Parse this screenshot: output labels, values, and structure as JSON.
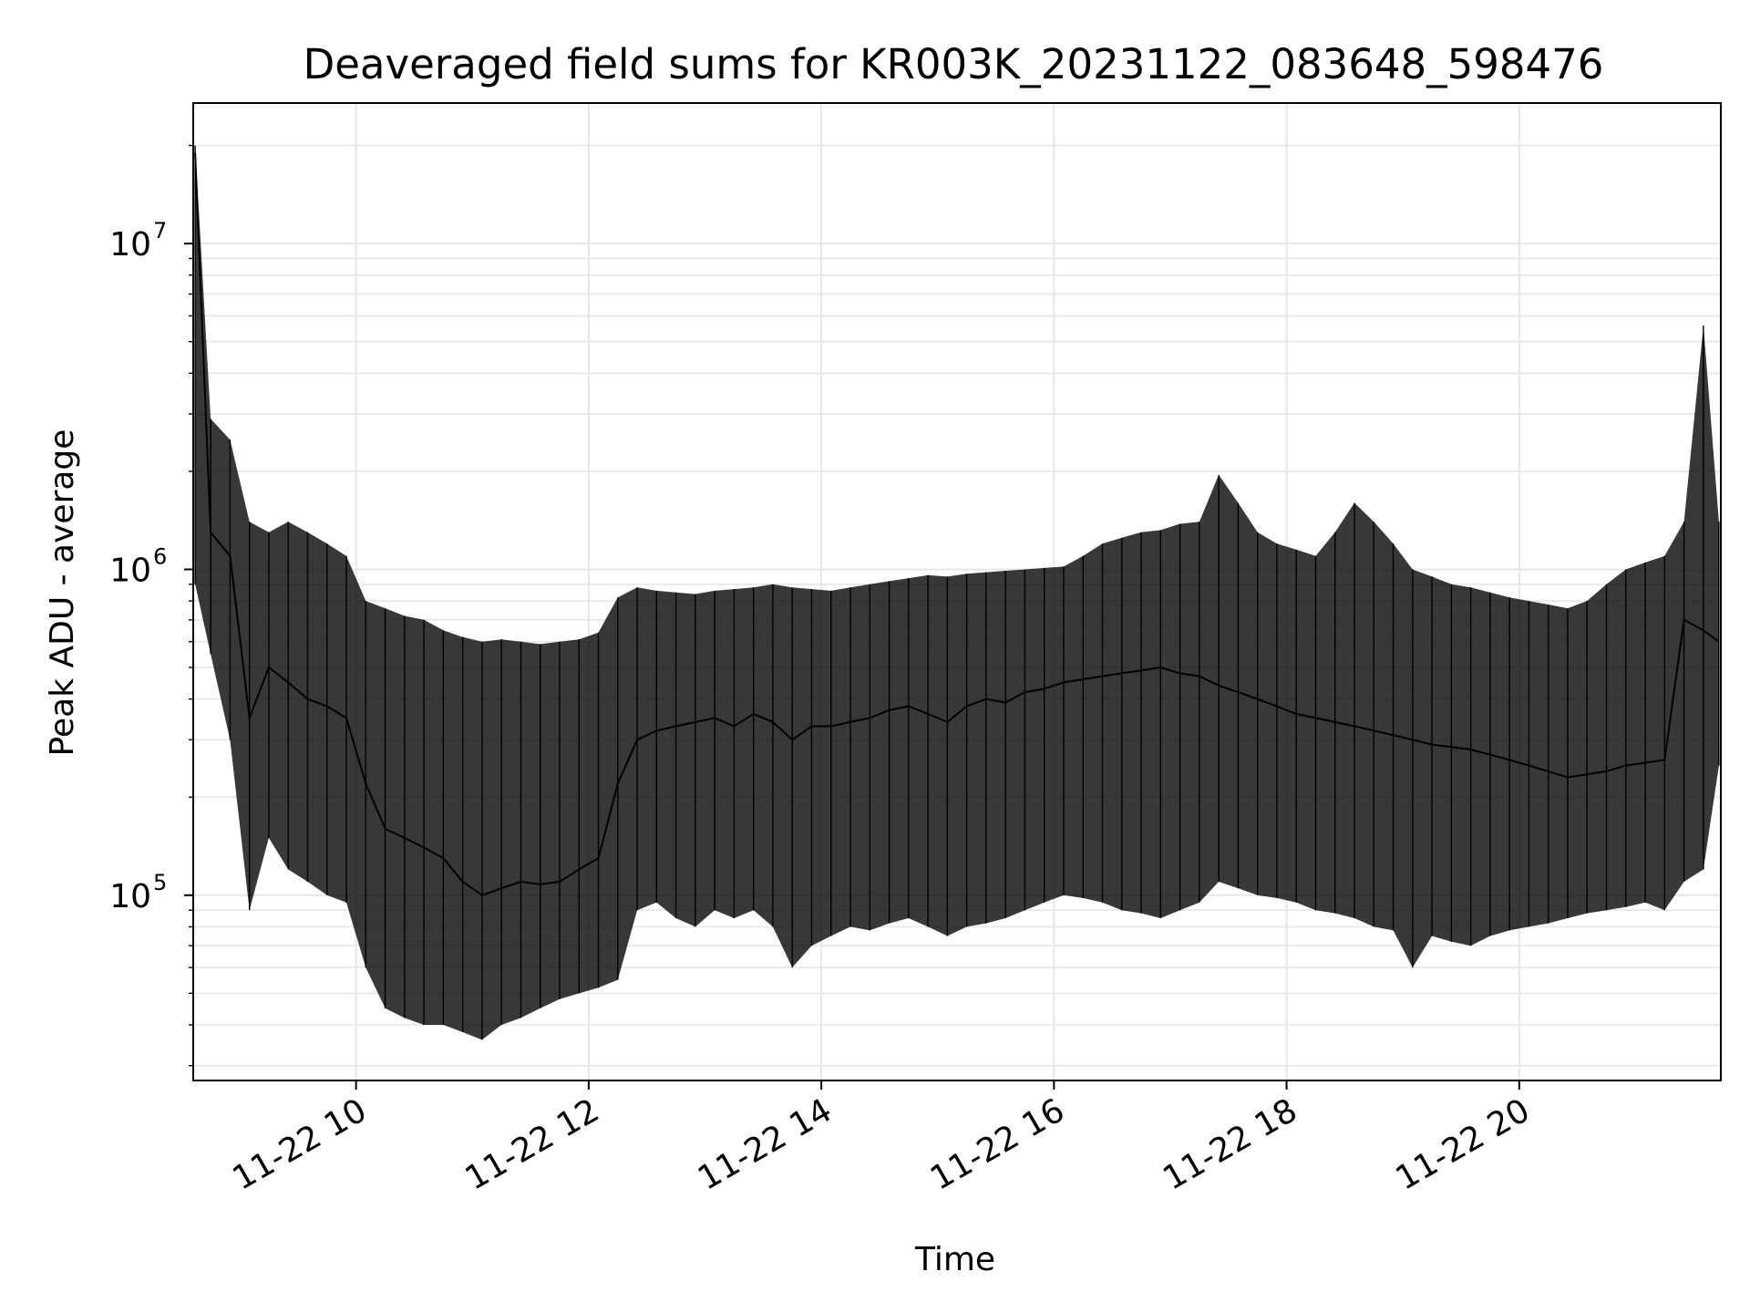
{
  "chart_data": {
    "type": "line",
    "title": "Deaveraged field sums for KR003K_20231122_083648_598476",
    "xlabel": "Time",
    "ylabel": "Peak ADU - average",
    "yscale": "log",
    "xlim": [
      "2023-11-22 08:36",
      "2023-11-22 21:44"
    ],
    "ylim": [
      27000,
      27000000
    ],
    "grid": true,
    "x_ticks": [
      "11-22 10",
      "11-22 12",
      "11-22 14",
      "11-22 16",
      "11-22 18",
      "11-22 20"
    ],
    "y_ticks": [
      {
        "base": "10",
        "exp": "5"
      },
      {
        "base": "10",
        "exp": "6"
      },
      {
        "base": "10",
        "exp": "7"
      }
    ],
    "series": [
      {
        "color": "#000000",
        "x": [
          "2023-11-22 08:37",
          "2023-11-22 08:45",
          "2023-11-22 08:55",
          "2023-11-22 09:05",
          "2023-11-22 09:15",
          "2023-11-22 09:25",
          "2023-11-22 09:35",
          "2023-11-22 09:45",
          "2023-11-22 09:55",
          "2023-11-22 10:05",
          "2023-11-22 10:15",
          "2023-11-22 10:25",
          "2023-11-22 10:35",
          "2023-11-22 10:45",
          "2023-11-22 10:55",
          "2023-11-22 11:05",
          "2023-11-22 11:15",
          "2023-11-22 11:25",
          "2023-11-22 11:35",
          "2023-11-22 11:45",
          "2023-11-22 11:55",
          "2023-11-22 12:05",
          "2023-11-22 12:15",
          "2023-11-22 12:25",
          "2023-11-22 12:35",
          "2023-11-22 12:45",
          "2023-11-22 12:55",
          "2023-11-22 13:05",
          "2023-11-22 13:15",
          "2023-11-22 13:25",
          "2023-11-22 13:35",
          "2023-11-22 13:45",
          "2023-11-22 13:55",
          "2023-11-22 14:05",
          "2023-11-22 14:15",
          "2023-11-22 14:25",
          "2023-11-22 14:35",
          "2023-11-22 14:45",
          "2023-11-22 14:55",
          "2023-11-22 15:05",
          "2023-11-22 15:15",
          "2023-11-22 15:25",
          "2023-11-22 15:35",
          "2023-11-22 15:45",
          "2023-11-22 15:55",
          "2023-11-22 16:05",
          "2023-11-22 16:15",
          "2023-11-22 16:25",
          "2023-11-22 16:35",
          "2023-11-22 16:45",
          "2023-11-22 16:55",
          "2023-11-22 17:05",
          "2023-11-22 17:15",
          "2023-11-22 17:25",
          "2023-11-22 17:35",
          "2023-11-22 17:45",
          "2023-11-22 17:55",
          "2023-11-22 18:05",
          "2023-11-22 18:15",
          "2023-11-22 18:25",
          "2023-11-22 18:35",
          "2023-11-22 18:45",
          "2023-11-22 18:55",
          "2023-11-22 19:05",
          "2023-11-22 19:15",
          "2023-11-22 19:25",
          "2023-11-22 19:35",
          "2023-11-22 19:45",
          "2023-11-22 19:55",
          "2023-11-22 20:05",
          "2023-11-22 20:15",
          "2023-11-22 20:25",
          "2023-11-22 20:35",
          "2023-11-22 20:45",
          "2023-11-22 20:55",
          "2023-11-22 21:05",
          "2023-11-22 21:15",
          "2023-11-22 21:25",
          "2023-11-22 21:35",
          "2023-11-22 21:43"
        ],
        "y": [
          19000000,
          1300000,
          1100000,
          350000,
          500000,
          450000,
          400000,
          380000,
          350000,
          220000,
          160000,
          150000,
          140000,
          130000,
          110000,
          100000,
          105000,
          110000,
          108000,
          110000,
          120000,
          130000,
          220000,
          300000,
          320000,
          330000,
          340000,
          350000,
          330000,
          360000,
          340000,
          300000,
          330000,
          330000,
          340000,
          350000,
          370000,
          380000,
          360000,
          340000,
          380000,
          400000,
          390000,
          420000,
          430000,
          450000,
          460000,
          470000,
          480000,
          490000,
          500000,
          480000,
          470000,
          440000,
          420000,
          400000,
          380000,
          360000,
          350000,
          340000,
          330000,
          320000,
          310000,
          300000,
          290000,
          285000,
          280000,
          270000,
          260000,
          250000,
          240000,
          230000,
          235000,
          240000,
          250000,
          255000,
          260000,
          700000,
          650000,
          600000
        ],
        "y_min": [
          900000,
          550000,
          300000,
          90000,
          150000,
          120000,
          110000,
          100000,
          95000,
          60000,
          45000,
          42000,
          40000,
          40000,
          38000,
          36000,
          40000,
          42000,
          45000,
          48000,
          50000,
          52000,
          55000,
          90000,
          95000,
          85000,
          80000,
          90000,
          85000,
          90000,
          80000,
          60000,
          70000,
          75000,
          80000,
          78000,
          82000,
          85000,
          80000,
          75000,
          80000,
          82000,
          85000,
          90000,
          95000,
          100000,
          98000,
          95000,
          90000,
          88000,
          85000,
          90000,
          95000,
          110000,
          105000,
          100000,
          98000,
          95000,
          90000,
          88000,
          85000,
          80000,
          78000,
          60000,
          75000,
          72000,
          70000,
          75000,
          78000,
          80000,
          82000,
          85000,
          88000,
          90000,
          92000,
          95000,
          90000,
          110000,
          120000,
          250000
        ],
        "y_max": [
          20000000,
          2900000,
          2500000,
          1400000,
          1300000,
          1400000,
          1300000,
          1200000,
          1100000,
          800000,
          760000,
          720000,
          700000,
          650000,
          620000,
          600000,
          610000,
          600000,
          590000,
          600000,
          610000,
          640000,
          820000,
          880000,
          860000,
          850000,
          840000,
          860000,
          870000,
          880000,
          900000,
          880000,
          870000,
          860000,
          880000,
          900000,
          920000,
          940000,
          960000,
          950000,
          970000,
          980000,
          990000,
          1000000,
          1010000,
          1020000,
          1100000,
          1200000,
          1250000,
          1300000,
          1320000,
          1380000,
          1400000,
          1950000,
          1600000,
          1300000,
          1200000,
          1150000,
          1100000,
          1300000,
          1600000,
          1400000,
          1200000,
          1000000,
          950000,
          900000,
          880000,
          850000,
          820000,
          800000,
          780000,
          760000,
          800000,
          900000,
          1000000,
          1050000,
          1100000,
          1400000,
          5600000,
          1400000
        ]
      }
    ]
  }
}
